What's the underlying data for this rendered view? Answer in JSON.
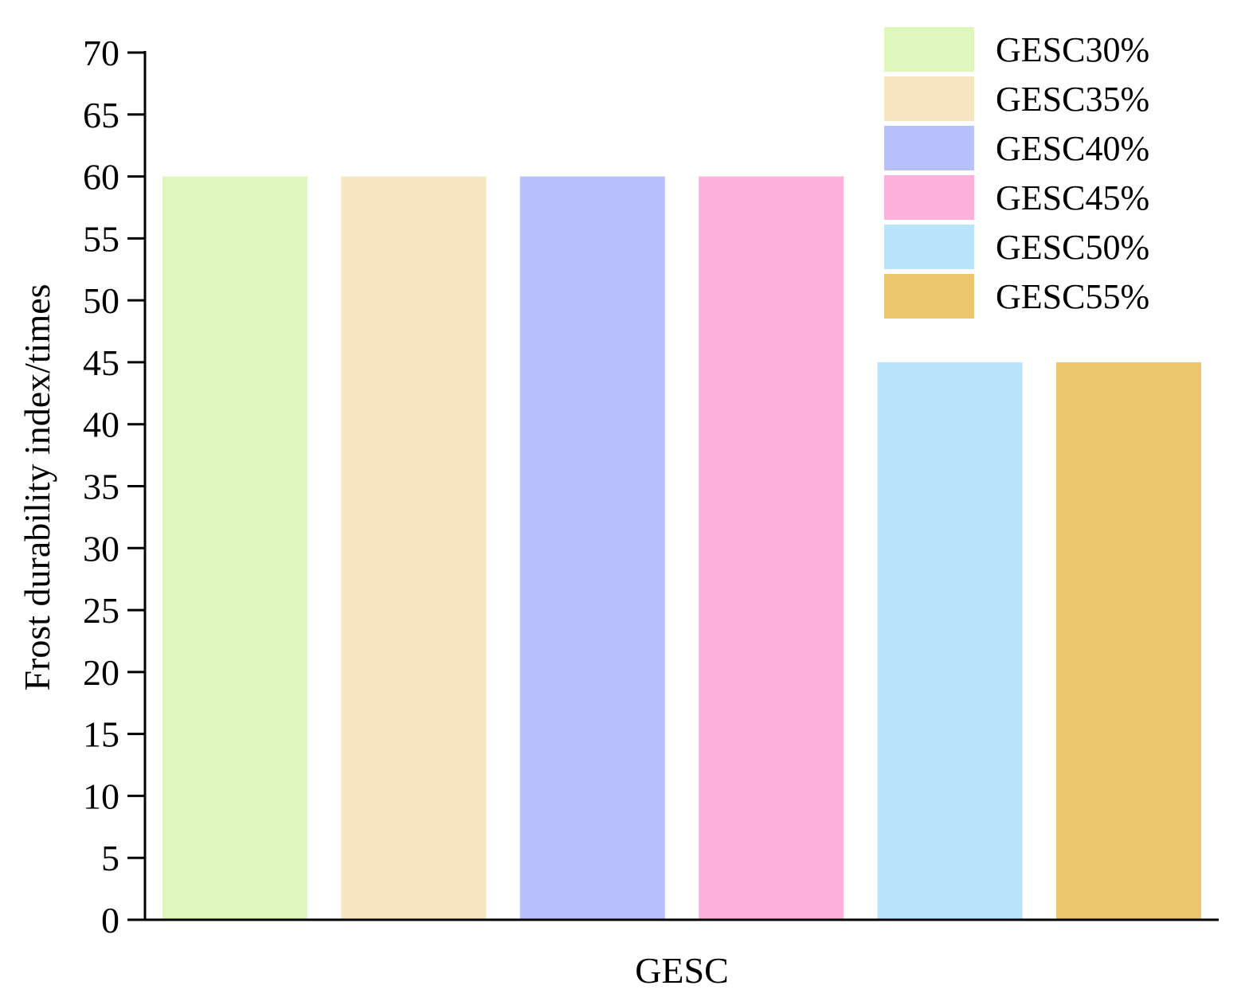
{
  "chart_data": {
    "type": "bar",
    "title": "",
    "xlabel": "GESC",
    "ylabel": "Frost durability index/times",
    "ylim": [
      0,
      70
    ],
    "ytick_step": 5,
    "yticks": [
      "0",
      "5",
      "10",
      "15",
      "20",
      "25",
      "30",
      "35",
      "40",
      "45",
      "50",
      "55",
      "60",
      "65",
      "70"
    ],
    "grid": false,
    "legend_position": "top-right",
    "series": [
      {
        "name": "GESC30%",
        "value": 60,
        "color": "#DFF7BD"
      },
      {
        "name": "GESC35%",
        "value": 60,
        "color": "#F7E6C1"
      },
      {
        "name": "GESC40%",
        "value": 60,
        "color": "#B9C1FC"
      },
      {
        "name": "GESC45%",
        "value": 60,
        "color": "#FEB2DB"
      },
      {
        "name": "GESC50%",
        "value": 45,
        "color": "#B9E4FC"
      },
      {
        "name": "GESC55%",
        "value": 45,
        "color": "#EBC66E"
      }
    ]
  }
}
